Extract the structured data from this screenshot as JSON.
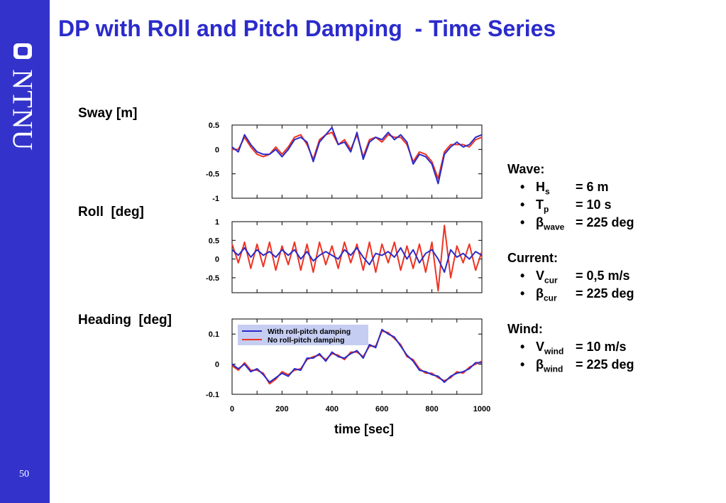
{
  "slide": {
    "title": "DP with Roll and Pitch Damping  - Time Series",
    "page_number": "50",
    "logo_text": "NTNU",
    "colors": {
      "title": "#2b2bcc",
      "sidebar": "#3333cc",
      "series_damped": "#2b2bc8",
      "series_undamped": "#ee3322",
      "legend_bg": "#c6cdf2"
    }
  },
  "panels": {
    "sway_label": "Sway [m]",
    "roll_label": "Roll  [deg]",
    "heading_label": "Heading  [deg]"
  },
  "chart_data": [
    {
      "type": "line",
      "ylabel": "Sway [m]",
      "xlim": [
        0,
        1000
      ],
      "ylim": [
        -1,
        0.5
      ],
      "yticks": [
        0.5,
        0,
        -0.5,
        -1
      ],
      "ytick_labels": [
        "0.5",
        "0",
        "-0.5",
        "-1"
      ],
      "xticks": [
        0,
        100,
        200,
        300,
        400,
        500,
        600,
        700,
        800,
        900,
        1000
      ],
      "series": [
        {
          "name": "With roll-pitch damping",
          "x": [
            0,
            25,
            50,
            75,
            100,
            125,
            150,
            175,
            200,
            225,
            250,
            275,
            300,
            325,
            350,
            375,
            400,
            425,
            450,
            475,
            500,
            525,
            550,
            575,
            600,
            625,
            650,
            675,
            700,
            725,
            750,
            775,
            800,
            825,
            850,
            875,
            900,
            925,
            950,
            975,
            1000
          ],
          "y": [
            0.05,
            -0.05,
            0.3,
            0.1,
            -0.05,
            -0.1,
            -0.1,
            0.0,
            -0.15,
            0.0,
            0.2,
            0.25,
            0.15,
            -0.25,
            0.15,
            0.3,
            0.45,
            0.1,
            0.15,
            -0.05,
            0.35,
            -0.2,
            0.15,
            0.25,
            0.2,
            0.35,
            0.2,
            0.3,
            0.15,
            -0.3,
            -0.1,
            -0.15,
            -0.3,
            -0.7,
            -0.1,
            0.05,
            0.15,
            0.05,
            0.1,
            0.25,
            0.3
          ]
        },
        {
          "name": "No roll-pitch damping",
          "x": [
            0,
            25,
            50,
            75,
            100,
            125,
            150,
            175,
            200,
            225,
            250,
            275,
            300,
            325,
            350,
            375,
            400,
            425,
            450,
            475,
            500,
            525,
            550,
            575,
            600,
            625,
            650,
            675,
            700,
            725,
            750,
            775,
            800,
            825,
            850,
            875,
            900,
            925,
            950,
            975,
            1000
          ],
          "y": [
            0.0,
            0.0,
            0.25,
            0.05,
            -0.1,
            -0.15,
            -0.1,
            0.05,
            -0.1,
            0.05,
            0.25,
            0.3,
            0.1,
            -0.2,
            0.2,
            0.3,
            0.35,
            0.1,
            0.2,
            0.0,
            0.3,
            -0.15,
            0.2,
            0.25,
            0.15,
            0.3,
            0.25,
            0.25,
            0.1,
            -0.25,
            -0.05,
            -0.1,
            -0.25,
            -0.6,
            -0.05,
            0.1,
            0.1,
            0.1,
            0.05,
            0.2,
            0.25
          ]
        }
      ]
    },
    {
      "type": "line",
      "ylabel": "Roll  [deg]",
      "xlim": [
        0,
        1000
      ],
      "ylim": [
        -0.9,
        1
      ],
      "yticks": [
        1,
        0.5,
        0,
        -0.5
      ],
      "ytick_labels": [
        "1",
        "0.5",
        "0",
        "-0.5"
      ],
      "xticks": [
        0,
        100,
        200,
        300,
        400,
        500,
        600,
        700,
        800,
        900,
        1000
      ],
      "series": [
        {
          "name": "With roll-pitch damping",
          "x": [
            0,
            25,
            50,
            75,
            100,
            125,
            150,
            175,
            200,
            225,
            250,
            275,
            300,
            325,
            350,
            375,
            400,
            425,
            450,
            475,
            500,
            525,
            550,
            575,
            600,
            625,
            650,
            675,
            700,
            725,
            750,
            775,
            800,
            825,
            850,
            875,
            900,
            925,
            950,
            975,
            1000
          ],
          "y": [
            0.25,
            0.1,
            0.3,
            0.05,
            0.25,
            0.1,
            0.2,
            0.05,
            0.25,
            0.1,
            0.25,
            0.0,
            0.2,
            -0.05,
            0.1,
            0.2,
            0.1,
            0.0,
            0.25,
            0.1,
            0.3,
            0.05,
            -0.15,
            0.15,
            0.1,
            0.2,
            0.05,
            0.3,
            0.0,
            0.25,
            -0.1,
            0.15,
            0.25,
            0.0,
            -0.35,
            0.25,
            0.05,
            0.15,
            0.0,
            0.2,
            0.1
          ]
        },
        {
          "name": "No roll-pitch damping",
          "x": [
            0,
            25,
            50,
            75,
            100,
            125,
            150,
            175,
            200,
            225,
            250,
            275,
            300,
            325,
            350,
            375,
            400,
            425,
            450,
            475,
            500,
            525,
            550,
            575,
            600,
            625,
            650,
            675,
            700,
            725,
            750,
            775,
            800,
            825,
            850,
            875,
            900,
            925,
            950,
            975,
            1000
          ],
          "y": [
            0.4,
            -0.1,
            0.45,
            -0.25,
            0.4,
            -0.2,
            0.45,
            -0.3,
            0.35,
            -0.15,
            0.45,
            -0.3,
            0.4,
            -0.35,
            0.45,
            -0.15,
            0.35,
            -0.25,
            0.45,
            -0.1,
            0.4,
            -0.3,
            0.45,
            -0.35,
            0.4,
            -0.1,
            0.45,
            -0.3,
            0.35,
            -0.25,
            0.4,
            -0.35,
            0.45,
            -0.85,
            0.9,
            -0.5,
            0.35,
            -0.1,
            0.4,
            -0.3,
            0.2
          ]
        }
      ]
    },
    {
      "type": "line",
      "ylabel": "Heading  [deg]",
      "xlabel": "time  [sec]",
      "xlim": [
        0,
        1000
      ],
      "ylim": [
        -0.1,
        0.15
      ],
      "yticks": [
        0.1,
        0,
        -0.1
      ],
      "ytick_labels": [
        "0.1",
        "0",
        "-0.1"
      ],
      "xticks": [
        0,
        100,
        200,
        300,
        400,
        500,
        600,
        700,
        800,
        900,
        1000
      ],
      "xtick_labels": [
        "0",
        "200",
        "400",
        "600",
        "800",
        "1000"
      ],
      "xtick_label_values": [
        0,
        200,
        400,
        600,
        800,
        1000
      ],
      "legend": {
        "placement": "top-left",
        "entries": [
          "With roll-pitch damping",
          "No roll-pitch damping"
        ]
      },
      "series": [
        {
          "name": "With roll-pitch damping",
          "x": [
            0,
            25,
            50,
            75,
            100,
            125,
            150,
            175,
            200,
            225,
            250,
            275,
            300,
            325,
            350,
            375,
            400,
            425,
            450,
            475,
            500,
            525,
            550,
            575,
            600,
            625,
            650,
            675,
            700,
            725,
            750,
            775,
            800,
            825,
            850,
            875,
            900,
            925,
            950,
            975,
            1000
          ],
          "y": [
            0.0,
            -0.015,
            0.0,
            -0.025,
            -0.015,
            -0.035,
            -0.06,
            -0.045,
            -0.03,
            -0.04,
            -0.015,
            -0.02,
            0.02,
            0.02,
            0.035,
            0.01,
            0.04,
            0.025,
            0.02,
            0.035,
            0.045,
            0.02,
            0.065,
            0.055,
            0.115,
            0.1,
            0.09,
            0.06,
            0.03,
            0.01,
            -0.02,
            -0.025,
            -0.035,
            -0.04,
            -0.06,
            -0.04,
            -0.03,
            -0.025,
            -0.015,
            0.005,
            0.005
          ]
        },
        {
          "name": "No roll-pitch damping",
          "x": [
            0,
            25,
            50,
            75,
            100,
            125,
            150,
            175,
            200,
            225,
            250,
            275,
            300,
            325,
            350,
            375,
            400,
            425,
            450,
            475,
            500,
            525,
            550,
            575,
            600,
            625,
            650,
            675,
            700,
            725,
            750,
            775,
            800,
            825,
            850,
            875,
            900,
            925,
            950,
            975,
            1000
          ],
          "y": [
            -0.005,
            -0.02,
            0.005,
            -0.02,
            -0.02,
            -0.03,
            -0.065,
            -0.05,
            -0.025,
            -0.035,
            -0.02,
            -0.015,
            0.015,
            0.025,
            0.03,
            0.015,
            0.035,
            0.03,
            0.015,
            0.04,
            0.04,
            0.025,
            0.06,
            0.06,
            0.11,
            0.105,
            0.085,
            0.065,
            0.025,
            0.015,
            -0.015,
            -0.03,
            -0.03,
            -0.045,
            -0.055,
            -0.045,
            -0.025,
            -0.03,
            -0.01,
            0.0,
            0.01
          ]
        }
      ]
    }
  ],
  "conditions": {
    "wave": {
      "heading": "Wave:",
      "rows": [
        {
          "symbol": "H",
          "sub": "s",
          "value": "= 6 m"
        },
        {
          "symbol": "T",
          "sub": "p",
          "value": "= 10 s"
        },
        {
          "symbol": "β",
          "sub": "wave",
          "value": "= 225 deg"
        }
      ]
    },
    "current": {
      "heading": "Current:",
      "rows": [
        {
          "symbol": "V",
          "sub": "cur",
          "value": "= 0,5 m/s"
        },
        {
          "symbol": "β",
          "sub": "cur",
          "value": "= 225 deg"
        }
      ]
    },
    "wind": {
      "heading": "Wind:",
      "rows": [
        {
          "symbol": "V",
          "sub": "wind",
          "value": "= 10 m/s"
        },
        {
          "symbol": "β",
          "sub": "wind",
          "value": "= 225 deg"
        }
      ]
    },
    "bullet": "•"
  }
}
